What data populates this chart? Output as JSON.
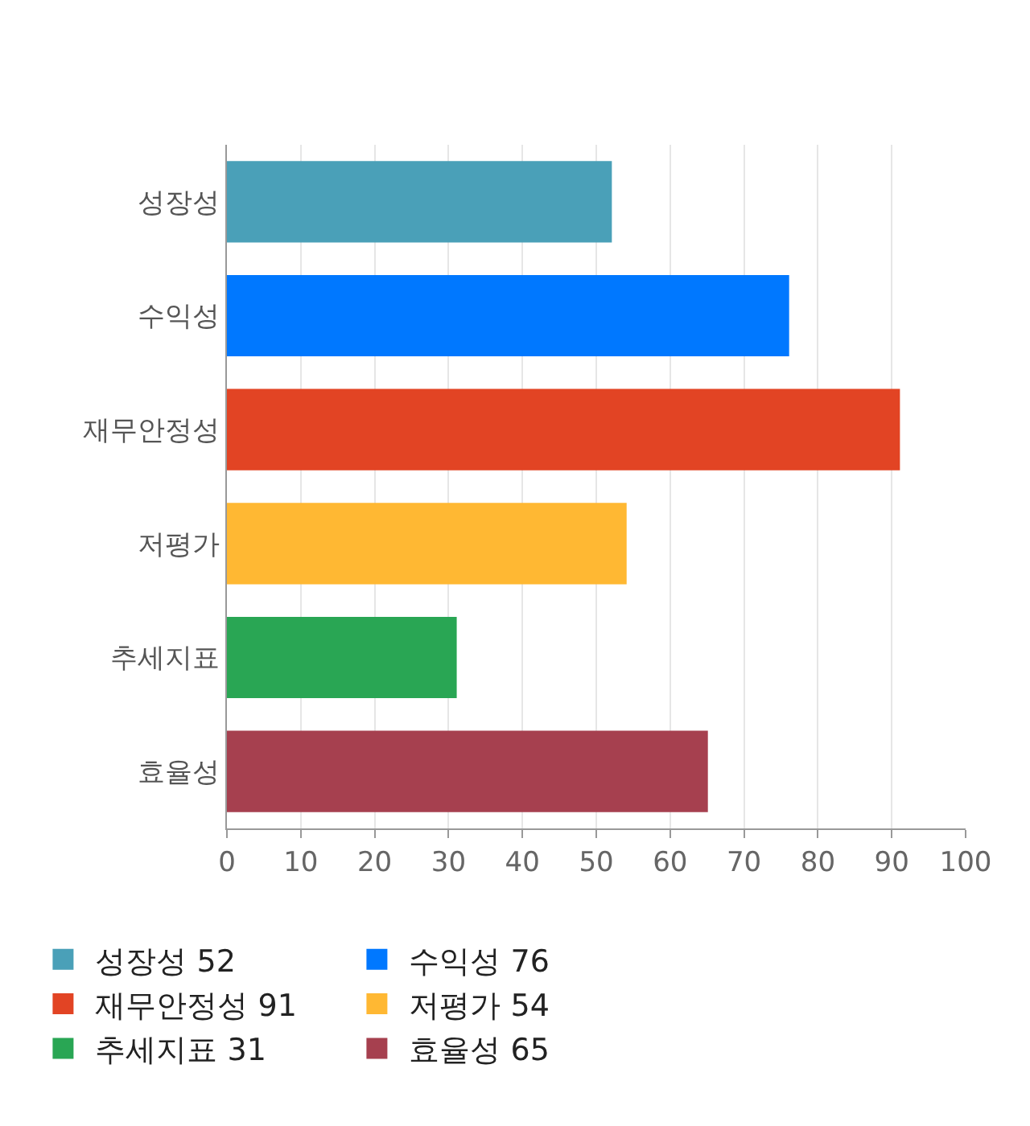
{
  "chart_data": {
    "type": "bar",
    "orientation": "horizontal",
    "categories": [
      "성장성",
      "수익성",
      "재무안정성",
      "저평가",
      "추세지표",
      "효율성"
    ],
    "series": [
      {
        "name": "성장성 52",
        "color": "#4aa0b8",
        "values": [
          52,
          null,
          null,
          null,
          null,
          null
        ]
      },
      {
        "name": "수익성 76",
        "color": "#0078ff",
        "values": [
          null,
          76,
          null,
          null,
          null,
          null
        ]
      },
      {
        "name": "재무안정성 91",
        "color": "#e24424",
        "values": [
          null,
          null,
          91,
          null,
          null,
          null
        ]
      },
      {
        "name": "저평가 54",
        "color": "#ffb833",
        "values": [
          null,
          null,
          null,
          54,
          null,
          null
        ]
      },
      {
        "name": "추세지표 31",
        "color": "#29a654",
        "values": [
          null,
          null,
          null,
          null,
          31,
          null
        ]
      },
      {
        "name": "효율성 65",
        "color": "#a6404f",
        "values": [
          null,
          null,
          null,
          null,
          null,
          65
        ]
      }
    ],
    "xlim": [
      0,
      100
    ],
    "xticks": [
      0,
      10,
      20,
      30,
      40,
      50,
      60,
      70,
      80,
      90,
      100
    ],
    "grid": "x",
    "legend": "bottom"
  }
}
